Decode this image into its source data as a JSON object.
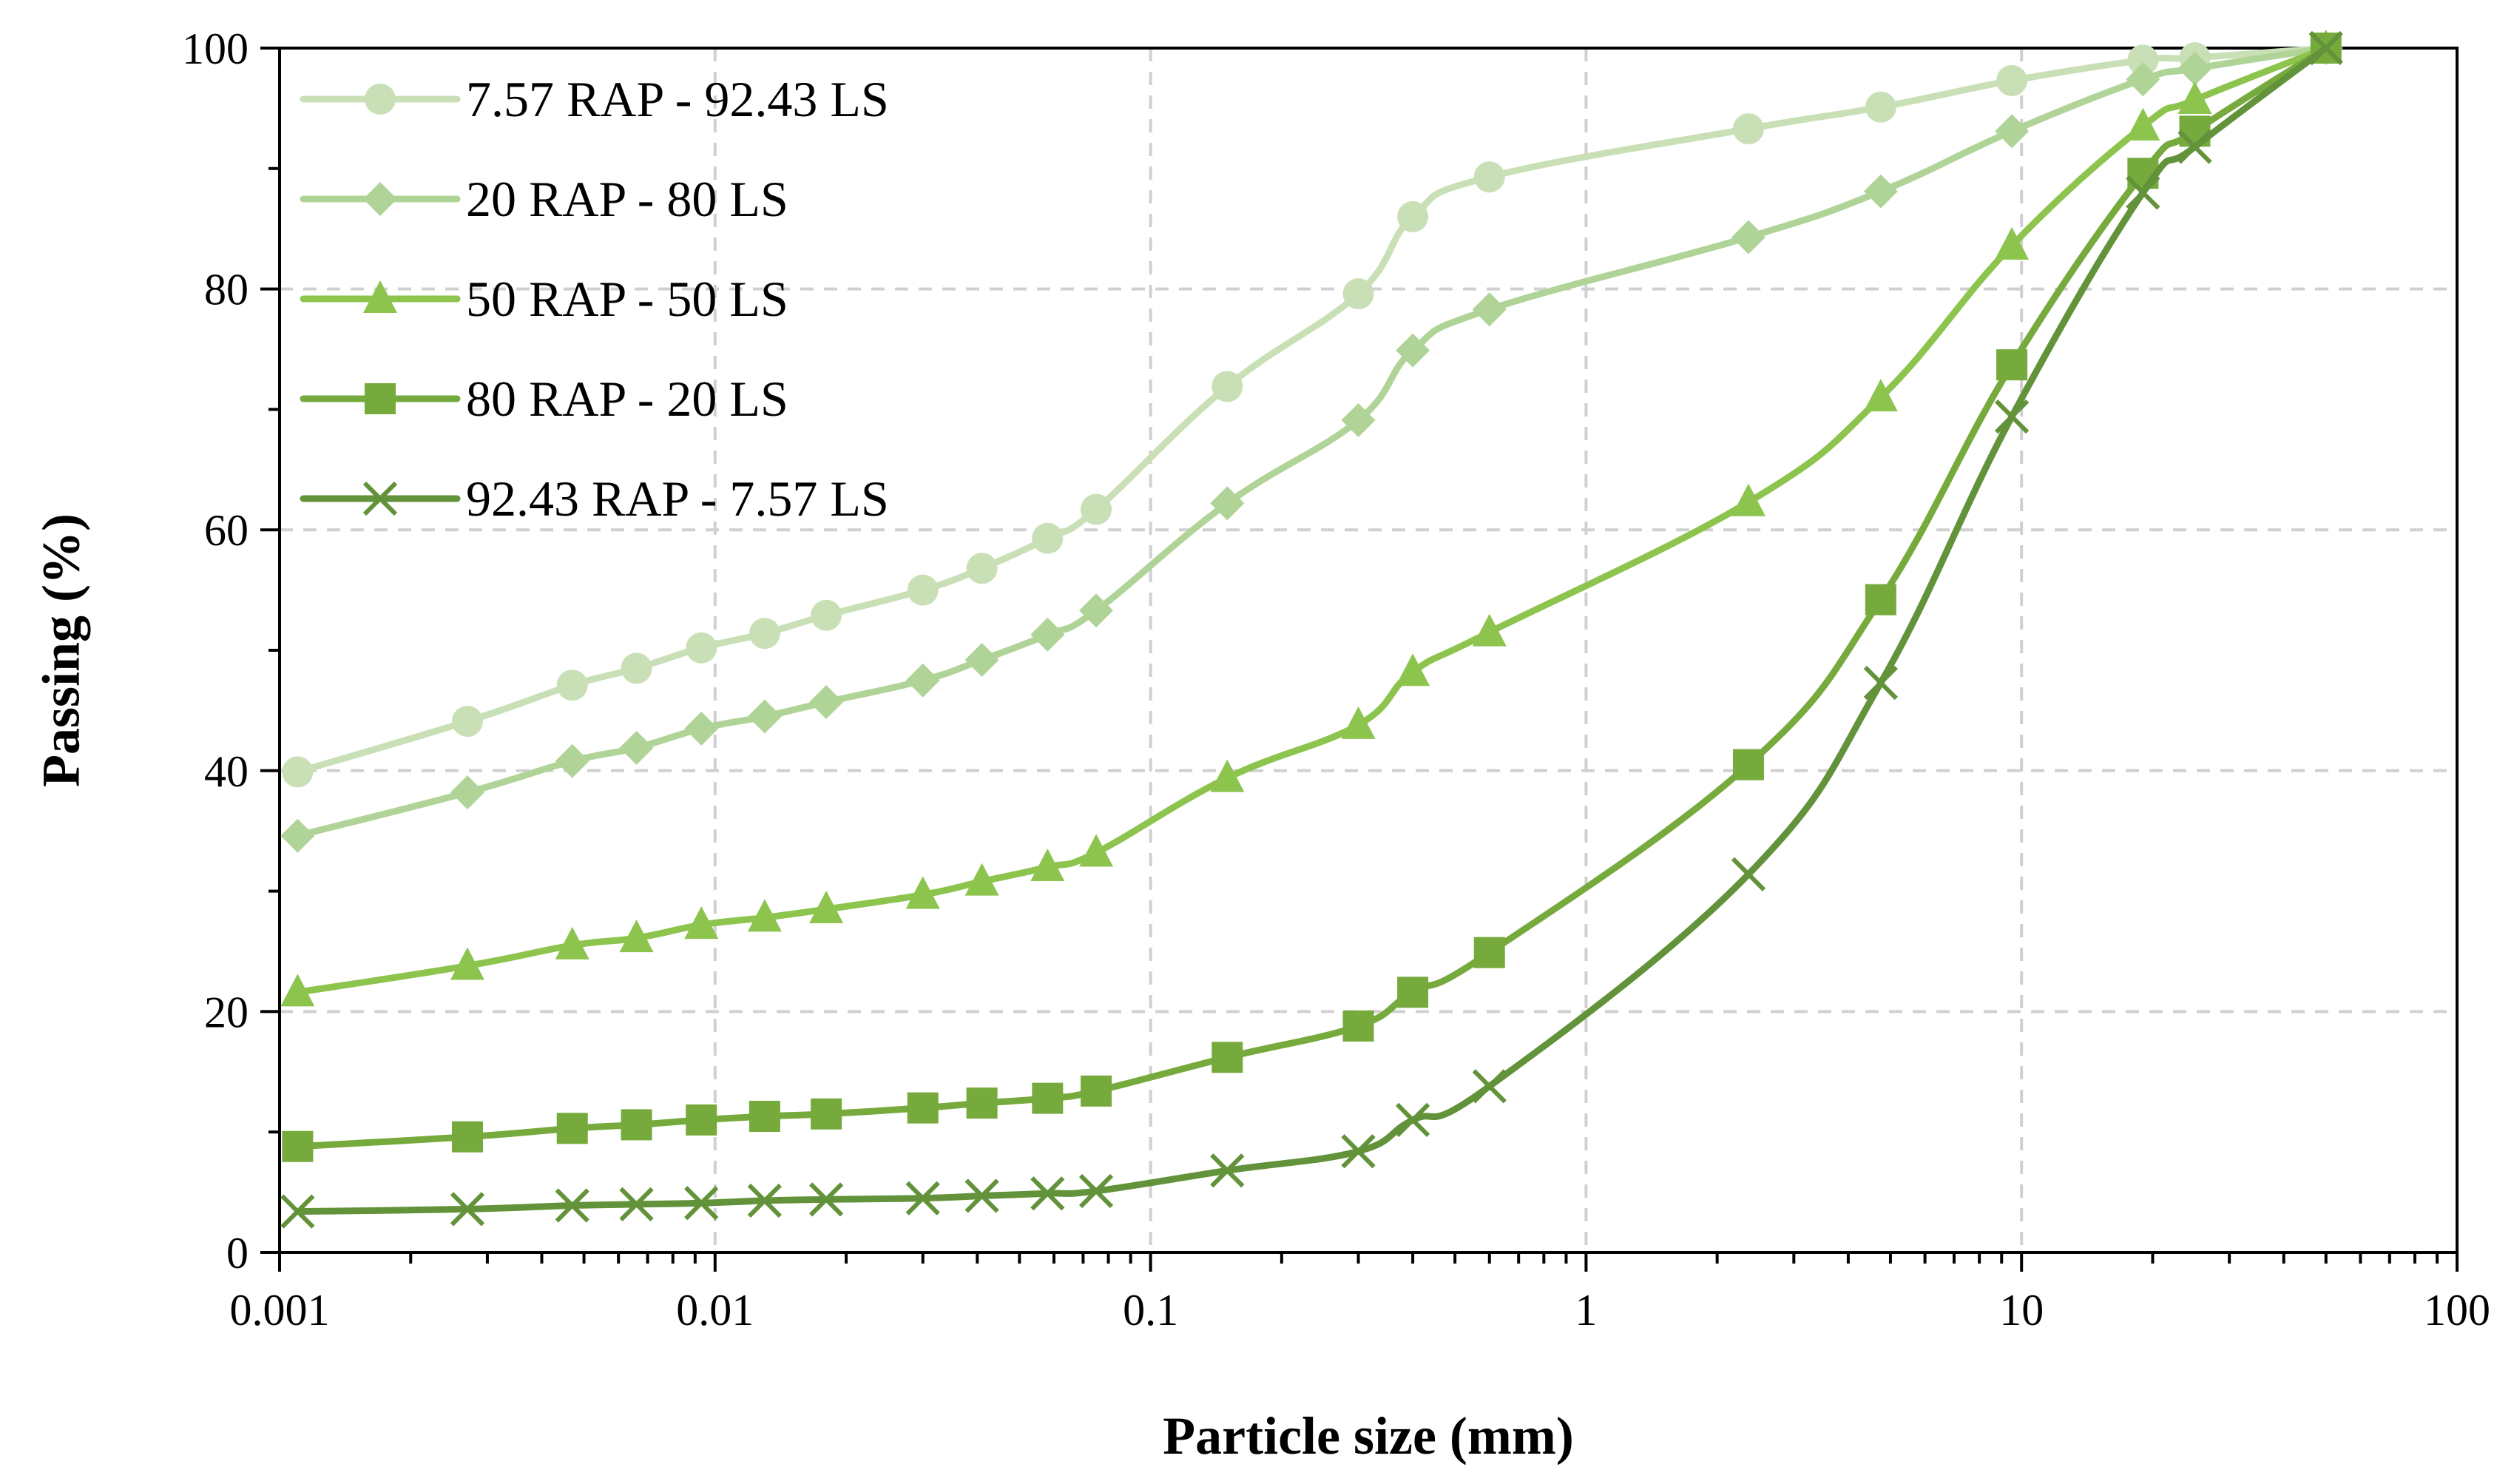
{
  "chart_data": {
    "type": "line",
    "title": "",
    "xlabel": "Particle size (mm)",
    "ylabel": "Passing (%)",
    "xscale": "log",
    "xlim": [
      0.001,
      100
    ],
    "ylim": [
      0,
      100
    ],
    "grid": true,
    "legend_position": "top-left",
    "x_ticks": [
      {
        "value": 0.001,
        "label": "0.001"
      },
      {
        "value": 0.01,
        "label": "0.01"
      },
      {
        "value": 0.1,
        "label": "0.1"
      },
      {
        "value": 1,
        "label": "1"
      },
      {
        "value": 10,
        "label": "10"
      },
      {
        "value": 100,
        "label": "100"
      }
    ],
    "y_ticks": [
      {
        "value": 0,
        "label": "0"
      },
      {
        "value": 20,
        "label": "20"
      },
      {
        "value": 40,
        "label": "40"
      },
      {
        "value": 60,
        "label": "60"
      },
      {
        "value": 80,
        "label": "80"
      },
      {
        "value": 100,
        "label": "100"
      }
    ],
    "x": [
      0.0011,
      0.0027,
      0.0047,
      0.0066,
      0.0093,
      0.013,
      0.018,
      0.03,
      0.041,
      0.058,
      0.075,
      0.15,
      0.3,
      0.4,
      0.6,
      2.36,
      4.75,
      9.5,
      19,
      25,
      50
    ],
    "series": [
      {
        "name": "7.57 RAP - 92.43 LS",
        "marker": "circle",
        "color": "#c9e0b7",
        "values": [
          39.9,
          44.1,
          47.1,
          48.5,
          50.2,
          51.4,
          52.9,
          55.0,
          56.8,
          59.3,
          61.7,
          71.9,
          79.6,
          86.0,
          89.3,
          93.3,
          95.1,
          97.3,
          99.0,
          99.2,
          100
        ]
      },
      {
        "name": "20 RAP - 80 LS",
        "marker": "diamond",
        "color": "#b0d497",
        "values": [
          34.6,
          38.2,
          40.8,
          41.9,
          43.5,
          44.5,
          45.7,
          47.5,
          49.2,
          51.3,
          53.3,
          62.2,
          69.1,
          74.9,
          78.3,
          84.3,
          88.1,
          93.1,
          97.4,
          98.3,
          100
        ]
      },
      {
        "name": "50 RAP - 50 LS",
        "marker": "triangle",
        "color": "#8cc44e",
        "values": [
          21.6,
          23.8,
          25.5,
          26.1,
          27.2,
          27.8,
          28.5,
          29.7,
          30.8,
          32.0,
          33.2,
          39.4,
          43.8,
          48.2,
          51.5,
          62.3,
          71.0,
          83.6,
          93.5,
          95.7,
          100
        ]
      },
      {
        "name": "80 RAP - 20 LS",
        "marker": "square",
        "color": "#76aa3c",
        "values": [
          8.8,
          9.6,
          10.3,
          10.6,
          11.0,
          11.3,
          11.5,
          12.0,
          12.4,
          12.8,
          13.4,
          16.2,
          18.8,
          21.6,
          24.9,
          40.5,
          54.2,
          73.7,
          89.6,
          93.1,
          100
        ]
      },
      {
        "name": "92.43 RAP - 7.57 LS",
        "marker": "x",
        "color": "#62923a",
        "values": [
          3.4,
          3.6,
          3.9,
          4.0,
          4.1,
          4.3,
          4.4,
          4.5,
          4.7,
          4.9,
          5.1,
          6.8,
          8.4,
          11.0,
          13.8,
          31.4,
          47.3,
          69.4,
          88.0,
          91.8,
          100
        ]
      }
    ]
  }
}
